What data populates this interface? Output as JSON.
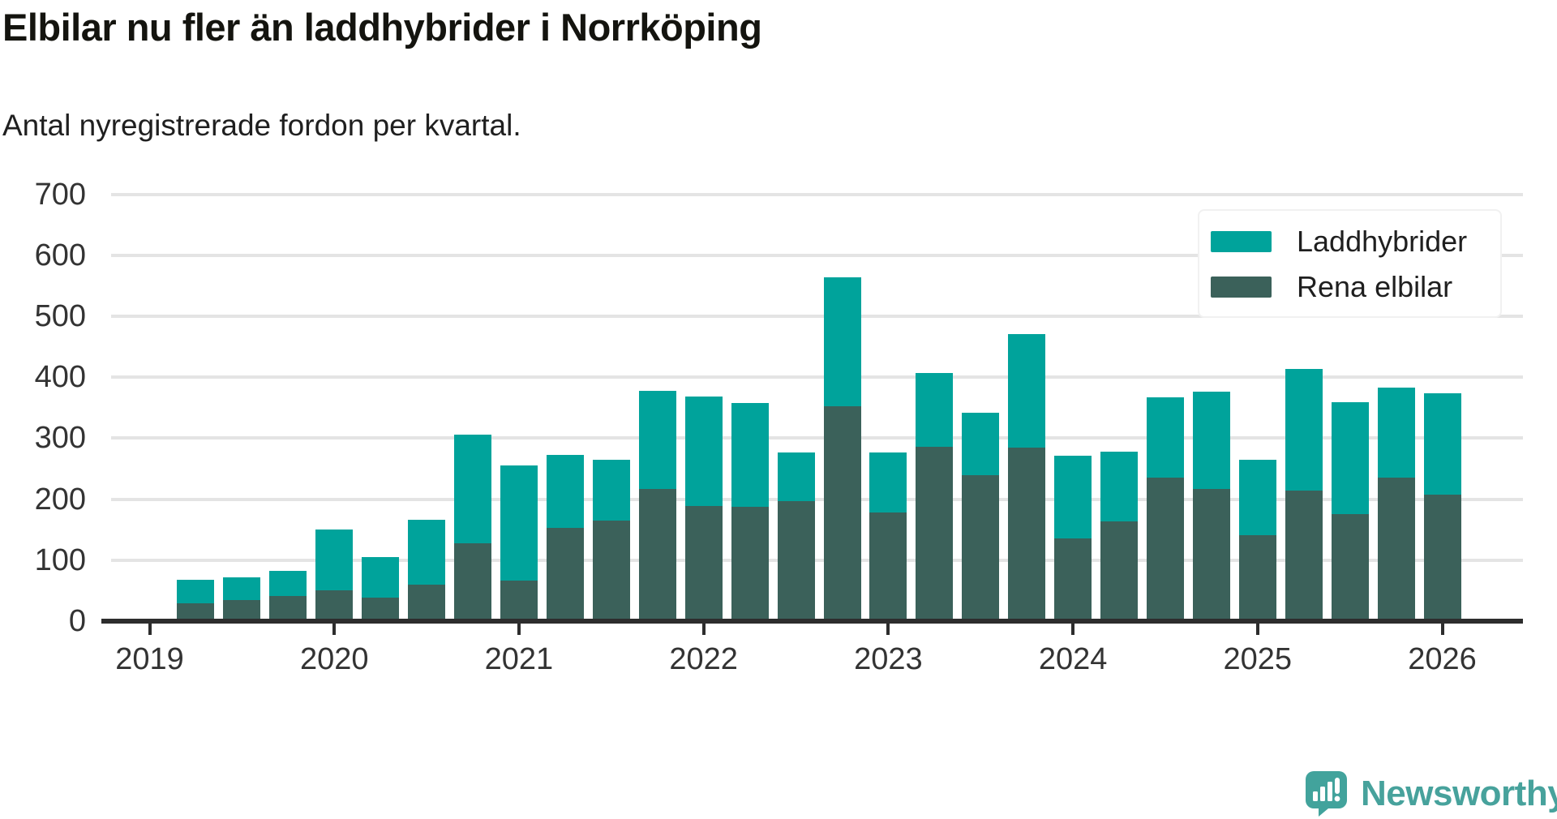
{
  "title": "Elbilar nu fler än laddhybrider i Norrköping",
  "subtitle": "Antal nyregistrerade fordon per kvartal.",
  "legend": {
    "items": [
      {
        "label": "Laddhybrider",
        "color": "#00a39b"
      },
      {
        "label": "Rena elbilar",
        "color": "#3b615a"
      }
    ]
  },
  "branding": {
    "logo_text": "Newsworthy",
    "logo_color": "#47a29c",
    "logo_icon": "bar-chart-speech-pin-icon"
  },
  "chart_data": {
    "type": "bar",
    "stacked": true,
    "title": "Elbilar nu fler än laddhybrider i Norrköping",
    "subtitle": "Antal nyregistrerade fordon per kvartal.",
    "x": [
      "2019 Q2",
      "2019 Q3",
      "2019 Q4",
      "2020 Q1",
      "2020 Q2",
      "2020 Q3",
      "2020 Q4",
      "2021 Q1",
      "2021 Q2",
      "2021 Q3",
      "2021 Q4",
      "2022 Q1",
      "2022 Q2",
      "2022 Q3",
      "2022 Q4",
      "2023 Q1",
      "2023 Q2",
      "2023 Q3",
      "2023 Q4",
      "2024 Q1",
      "2024 Q2",
      "2024 Q3",
      "2024 Q4",
      "2025 Q1",
      "2025 Q2",
      "2025 Q3",
      "2025 Q4",
      "2026 Q1"
    ],
    "series": [
      {
        "name": "Rena elbilar",
        "color": "#3b615a",
        "stack_position": "bottom",
        "values": [
          29,
          35,
          41,
          50,
          38,
          60,
          127,
          66,
          153,
          165,
          217,
          189,
          187,
          197,
          352,
          178,
          286,
          240,
          284,
          135,
          163,
          236,
          217,
          141,
          214,
          175,
          235,
          208
        ]
      },
      {
        "name": "Laddhybrider",
        "color": "#00a39b",
        "stack_position": "top",
        "values": [
          38,
          37,
          41,
          100,
          66,
          106,
          178,
          189,
          120,
          100,
          161,
          179,
          170,
          80,
          211,
          99,
          121,
          102,
          186,
          136,
          114,
          132,
          159,
          124,
          199,
          184,
          148,
          166
        ]
      }
    ],
    "totals": [
      67,
      72,
      82,
      150,
      104,
      166,
      305,
      255,
      273,
      265,
      378,
      368,
      357,
      277,
      563,
      277,
      407,
      342,
      470,
      271,
      277,
      368,
      376,
      265,
      413,
      359,
      383,
      374
    ],
    "xticks": [
      "2019",
      "2020",
      "2021",
      "2022",
      "2023",
      "2024",
      "2025",
      "2026"
    ],
    "yticks": [
      0,
      100,
      200,
      300,
      400,
      500,
      600,
      700
    ],
    "ylim": [
      0,
      700
    ],
    "grid": true,
    "legend_position": "top-right",
    "axis_color": "#2d2d2d",
    "gridline_color": "#e4e4e4"
  }
}
